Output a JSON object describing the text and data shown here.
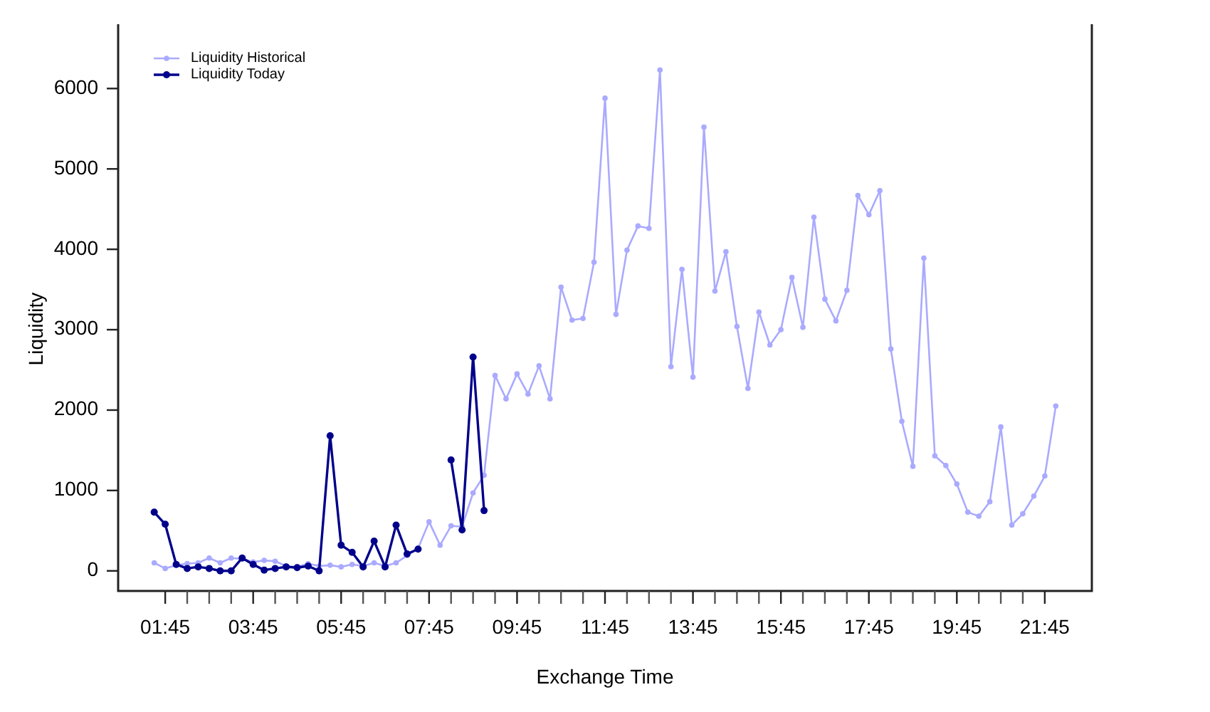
{
  "chart_data": {
    "type": "line",
    "xlabel": "Exchange Time",
    "ylabel": "Liquidity",
    "legend": "top left",
    "marker": "circle",
    "line_style": "solid",
    "grid": false,
    "x": [
      1.5,
      1.75,
      2,
      2.25,
      2.5,
      2.75,
      3,
      3.25,
      3.5,
      3.75,
      4,
      4.25,
      4.5,
      4.75,
      5,
      5.25,
      5.5,
      5.75,
      6,
      6.25,
      6.5,
      6.75,
      7,
      7.25,
      7.5,
      7.75,
      8,
      8.25,
      8.5,
      8.75,
      9,
      9.25,
      9.5,
      9.75,
      10,
      10.25,
      10.5,
      10.75,
      11,
      11.25,
      11.5,
      11.75,
      12,
      12.25,
      12.5,
      12.75,
      13,
      13.25,
      13.5,
      13.75,
      14,
      14.25,
      14.5,
      14.75,
      15,
      15.25,
      15.5,
      15.75,
      16,
      16.25,
      16.5,
      16.75,
      17,
      17.25,
      17.5,
      17.75,
      18,
      18.25,
      18.5,
      18.75,
      19,
      19.25,
      19.5,
      19.75,
      20,
      20.25,
      20.5,
      20.75,
      21,
      21.25,
      21.5,
      21.75,
      22
    ],
    "series": [
      {
        "name": "Liquidity Historical",
        "color": "#aaaaff",
        "values": [
          100,
          30,
          70,
          90,
          100,
          160,
          100,
          160,
          150,
          110,
          130,
          120,
          60,
          50,
          90,
          60,
          70,
          50,
          80,
          60,
          100,
          60,
          100,
          190,
          280,
          610,
          320,
          560,
          550,
          970,
          1190,
          2430,
          2140,
          2450,
          2200,
          2550,
          2140,
          3530,
          3120,
          3140,
          3840,
          5880,
          3190,
          3990,
          4290,
          4260,
          6230,
          2540,
          3750,
          2410,
          5520,
          3480,
          3970,
          3040,
          2270,
          3220,
          2810,
          3000,
          3650,
          3030,
          4400,
          3380,
          3110,
          3490,
          4670,
          4430,
          4730,
          2760,
          1860,
          1300,
          3890,
          1430,
          1310,
          1080,
          730,
          680,
          860,
          1790,
          570,
          710,
          930,
          1180,
          2050
        ]
      },
      {
        "name": "Liquidity Today",
        "color": "#00008b",
        "x": [
          1.5,
          1.75,
          2,
          2.25,
          2.5,
          2.75,
          3,
          3.25,
          3.5,
          3.75,
          4,
          4.25,
          4.5,
          4.75,
          5,
          5.25,
          5.5,
          5.75,
          6,
          6.25,
          6.5,
          6.75,
          7,
          7.25,
          7.5,
          7.75,
          8,
          8.25,
          8.5,
          8.75,
          9
        ],
        "values": [
          730,
          580,
          80,
          30,
          50,
          30,
          0,
          0,
          160,
          80,
          10,
          30,
          50,
          40,
          60,
          0,
          1680,
          320,
          230,
          50,
          370,
          50,
          570,
          210,
          270,
          null,
          null,
          1380,
          510,
          2660,
          750
        ]
      }
    ],
    "xlim": [
      0.68,
      22.82
    ],
    "xticks": [
      {
        "value": 1.75,
        "label": "01:45"
      },
      {
        "value": 2.25,
        "label": null
      },
      {
        "value": 2.75,
        "label": null
      },
      {
        "value": 3.25,
        "label": null
      },
      {
        "value": 3.75,
        "label": "03:45"
      },
      {
        "value": 4.25,
        "label": null
      },
      {
        "value": 4.75,
        "label": null
      },
      {
        "value": 5.25,
        "label": null
      },
      {
        "value": 5.75,
        "label": "05:45"
      },
      {
        "value": 6.25,
        "label": null
      },
      {
        "value": 6.75,
        "label": null
      },
      {
        "value": 7.25,
        "label": null
      },
      {
        "value": 7.75,
        "label": "07:45"
      },
      {
        "value": 8.25,
        "label": null
      },
      {
        "value": 8.75,
        "label": null
      },
      {
        "value": 9.25,
        "label": null
      },
      {
        "value": 9.75,
        "label": "09:45"
      },
      {
        "value": 10.25,
        "label": null
      },
      {
        "value": 10.75,
        "label": null
      },
      {
        "value": 11.25,
        "label": null
      },
      {
        "value": 11.75,
        "label": "11:45"
      },
      {
        "value": 12.25,
        "label": null
      },
      {
        "value": 12.75,
        "label": null
      },
      {
        "value": 13.25,
        "label": null
      },
      {
        "value": 13.75,
        "label": "13:45"
      },
      {
        "value": 14.25,
        "label": null
      },
      {
        "value": 14.75,
        "label": null
      },
      {
        "value": 15.25,
        "label": null
      },
      {
        "value": 15.75,
        "label": "15:45"
      },
      {
        "value": 16.25,
        "label": null
      },
      {
        "value": 16.75,
        "label": null
      },
      {
        "value": 17.25,
        "label": null
      },
      {
        "value": 17.75,
        "label": "17:45"
      },
      {
        "value": 18.25,
        "label": null
      },
      {
        "value": 18.75,
        "label": null
      },
      {
        "value": 19.25,
        "label": null
      },
      {
        "value": 19.75,
        "label": "19:45"
      },
      {
        "value": 20.25,
        "label": null
      },
      {
        "value": 20.75,
        "label": null
      },
      {
        "value": 21.25,
        "label": null
      },
      {
        "value": 21.75,
        "label": "21:45"
      }
    ],
    "ylim": [
      -250,
      6800
    ],
    "yticks": [
      0,
      1000,
      2000,
      3000,
      4000,
      5000,
      6000
    ]
  }
}
